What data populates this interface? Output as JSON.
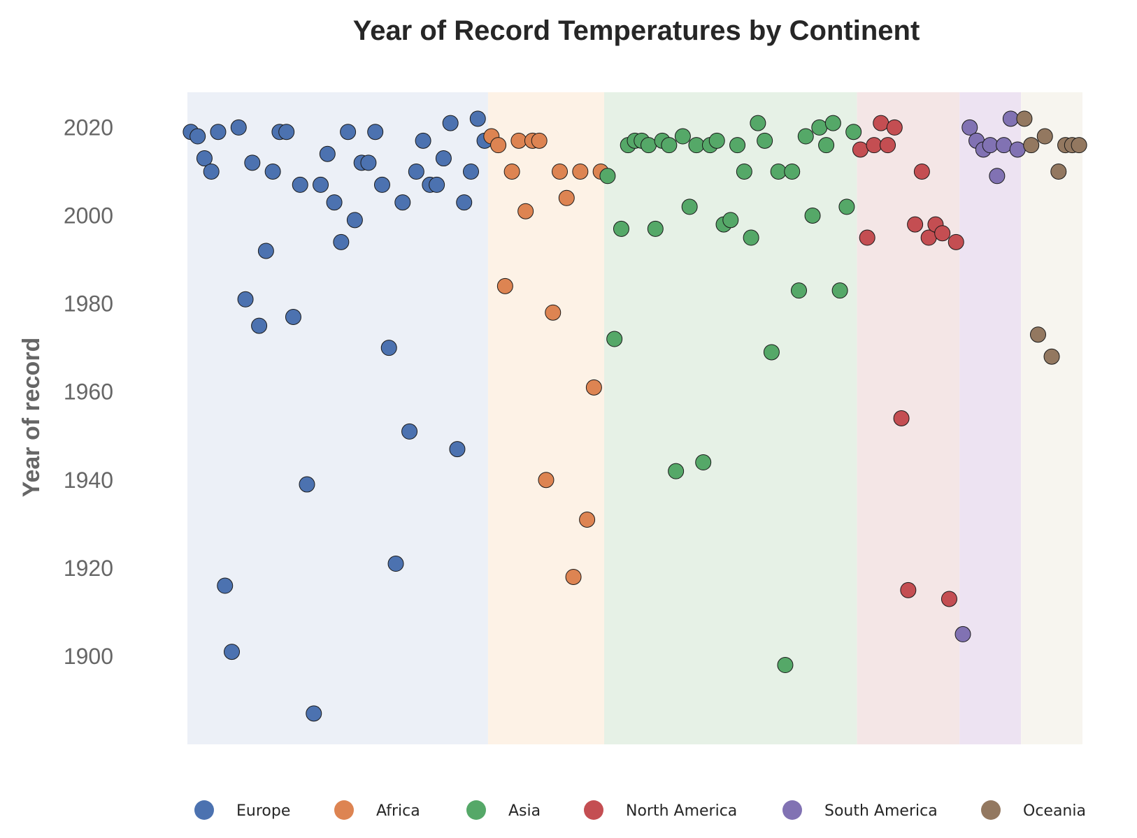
{
  "chart_data": {
    "type": "scatter",
    "title": "Year of Record Temperatures by Continent",
    "xlabel": "",
    "ylabel": "Year of record",
    "ylim": [
      1880,
      2028
    ],
    "yticks": [
      1900,
      1920,
      1940,
      1960,
      1980,
      2000,
      2020
    ],
    "grid": false,
    "legend_position": "bottom",
    "series": [
      {
        "name": "Europe",
        "color": "#4c72b0",
        "band_color": "#ecf0f7",
        "values": [
          2019,
          2018,
          2013,
          2010,
          2019,
          1916,
          1901,
          2020,
          1981,
          2012,
          1975,
          1992,
          2010,
          2019,
          2019,
          1977,
          2007,
          1939,
          1887,
          2007,
          2014,
          2003,
          1994,
          2019,
          1999,
          2012,
          2012,
          2019,
          2007,
          1970,
          1921,
          2003,
          1951,
          2010,
          2017,
          2007,
          2007,
          2013,
          2021,
          1947,
          2003,
          2010,
          2022,
          2017
        ]
      },
      {
        "name": "Africa",
        "color": "#dd8452",
        "band_color": "#fdf2e6",
        "values": [
          2018,
          2016,
          1984,
          2010,
          2017,
          2001,
          2017,
          2017,
          1940,
          1978,
          2010,
          2004,
          1918,
          2010,
          1931,
          1961,
          2010
        ]
      },
      {
        "name": "Asia",
        "color": "#55a868",
        "band_color": "#e6f1e6",
        "values": [
          2009,
          1972,
          1997,
          2016,
          2017,
          2017,
          2016,
          1997,
          2017,
          2016,
          1942,
          2018,
          2002,
          2016,
          1944,
          2016,
          2017,
          1998,
          1999,
          2016,
          2010,
          1995,
          2021,
          2017,
          1969,
          2010,
          1898,
          2010,
          1983,
          2018,
          2000,
          2020,
          2016,
          2021,
          1983,
          2002,
          2019
        ]
      },
      {
        "name": "North America",
        "color": "#c44e52",
        "band_color": "#f4e6e6",
        "values": [
          2015,
          1995,
          2016,
          2021,
          2016,
          2020,
          1954,
          1915,
          1998,
          2010,
          1995,
          1998,
          1996,
          1913,
          1994
        ]
      },
      {
        "name": "South America",
        "color": "#8172b3",
        "band_color": "#ede3f2",
        "values": [
          1905,
          2020,
          2017,
          2015,
          2016,
          2009,
          2016,
          2022,
          2015
        ]
      },
      {
        "name": "Oceania",
        "color": "#937860",
        "band_color": "#f7f5ef",
        "values": [
          2022,
          2016,
          1973,
          2018,
          1968,
          2010,
          2016,
          2016,
          2016
        ]
      }
    ]
  }
}
